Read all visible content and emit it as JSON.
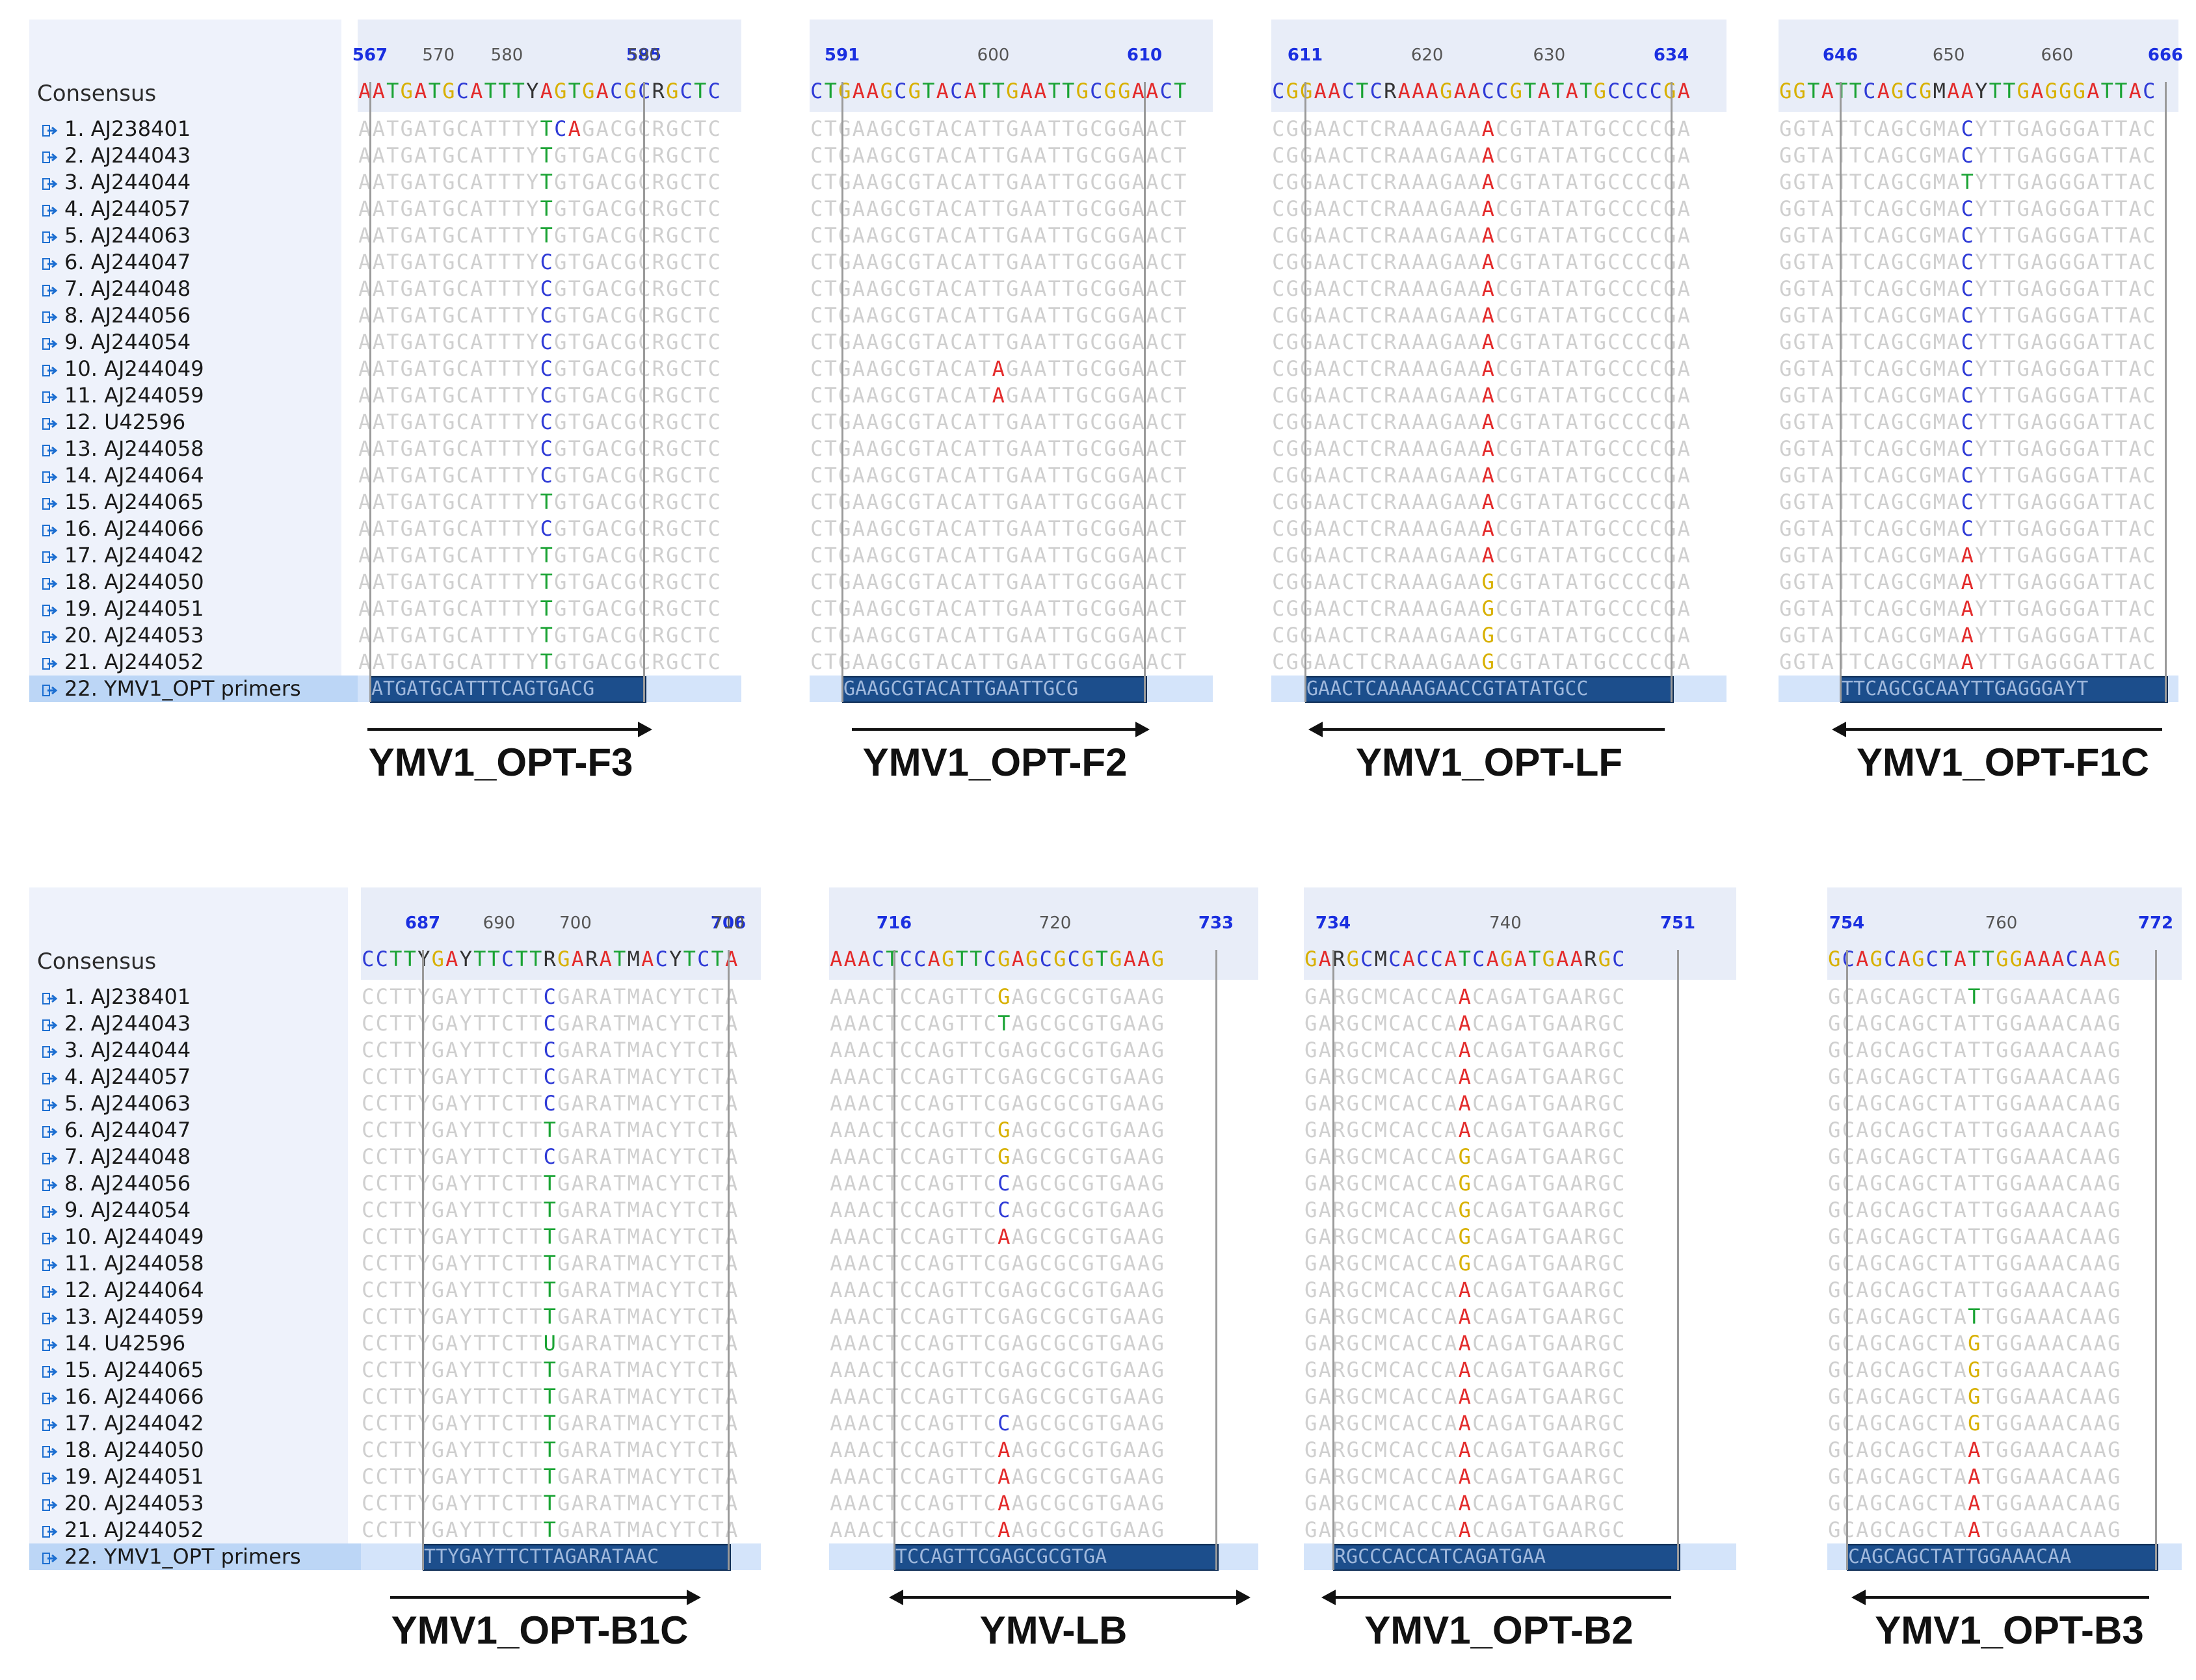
{
  "consensus_label": "Consensus",
  "top_sequences": [
    "1. AJ238401",
    "2. AJ244043",
    "3. AJ244044",
    "4. AJ244057",
    "5. AJ244063",
    "6. AJ244047",
    "7. AJ244048",
    "8. AJ244056",
    "9. AJ244054",
    "10. AJ244049",
    "11. AJ244059",
    "12. U42596",
    "13. AJ244058",
    "14. AJ244064",
    "15. AJ244065",
    "16. AJ244066",
    "17. AJ244042",
    "18. AJ244050",
    "19. AJ244051",
    "20. AJ244053",
    "21. AJ244052",
    "22. YMV1_OPT primers"
  ],
  "bottom_sequences": [
    "1. AJ238401",
    "2. AJ244043",
    "3. AJ244044",
    "4. AJ244057",
    "5. AJ244063",
    "6. AJ244047",
    "7. AJ244048",
    "8. AJ244056",
    "9. AJ244054",
    "10. AJ244049",
    "11. AJ244058",
    "12. AJ244064",
    "13. AJ244059",
    "14. U42596",
    "15. AJ244065",
    "16. AJ244066",
    "17. AJ244042",
    "18. AJ244050",
    "19. AJ244051",
    "20. AJ244053",
    "21. AJ244052",
    "22. YMV1_OPT primers"
  ],
  "colors": {
    "A": "#e32b2b",
    "C": "#2f3bd6",
    "G": "#d8b000",
    "T": "#1aa334",
    "primer_bar": "#1c4e8c",
    "ruler_bold": "#1a2fe0"
  },
  "icon": "sequence-arrow-icon",
  "panels": [
    {
      "primer": "YMV1_OPT-F3",
      "direction": "right",
      "ticks": [
        {
          "t": "567",
          "b": true
        },
        {
          "t": "570",
          "b": false
        },
        {
          "t": "580",
          "b": false
        },
        {
          "t": "585",
          "b": true
        },
        {
          "t": "590",
          "b": false
        }
      ],
      "consensus": "AATGATGCATTTYAGTGACGCRGCTC",
      "primer_seq": "ATGATGCATTTCAGTGACG",
      "variants": [
        "TCA",
        "T",
        "T",
        "T",
        "T",
        "C",
        "C",
        "C",
        "C",
        "C",
        "C",
        "C",
        "C",
        "C",
        "T",
        "C",
        "T",
        "T",
        "T",
        "T",
        "T"
      ]
    },
    {
      "primer": "YMV1_OPT-F2",
      "direction": "right",
      "ticks": [
        {
          "t": "591",
          "b": true
        },
        {
          "t": "600",
          "b": false
        },
        {
          "t": "610",
          "b": true
        }
      ],
      "consensus": "CTGAAGCGTACATTGAATTGCGGAACT",
      "primer_seq": "GAAGCGTACATTGAATTGCG",
      "variants": [
        "",
        "",
        "",
        "",
        "",
        "",
        "",
        "",
        "",
        "A",
        "A",
        "",
        "",
        "",
        "",
        "",
        "",
        "",
        "",
        "",
        ""
      ]
    },
    {
      "primer": "YMV1_OPT-LF",
      "direction": "left",
      "ticks": [
        {
          "t": "611",
          "b": true
        },
        {
          "t": "620",
          "b": false
        },
        {
          "t": "630",
          "b": false
        },
        {
          "t": "634",
          "b": true
        }
      ],
      "consensus": "CGGAACTCRAAAGAACCGTATATGCCCCGA",
      "primer_seq": "GAACTCAAAAGAACCGTATATGCC",
      "variants": [
        "A",
        "A",
        "A",
        "A",
        "A",
        "A",
        "A",
        "A",
        "A",
        "A",
        "A",
        "A",
        "A",
        "A",
        "A",
        "A",
        "A",
        "G",
        "G",
        "G",
        "G"
      ]
    },
    {
      "primer": "YMV1_OPT-F1C",
      "direction": "left",
      "ticks": [
        {
          "t": "646",
          "b": true
        },
        {
          "t": "650",
          "b": false
        },
        {
          "t": "660",
          "b": false
        },
        {
          "t": "666",
          "b": true
        }
      ],
      "consensus": "GGTATTCAGCGMAAYTTGAGGGATTAC",
      "primer_seq": "TTCAGCGCAAYTTGAGGGAYT",
      "variants": [
        "C",
        "C",
        "T",
        "C",
        "C",
        "C",
        "C",
        "C",
        "C",
        "C",
        "C",
        "C",
        "C",
        "C",
        "C",
        "C",
        "A",
        "A",
        "A",
        "A",
        "A"
      ]
    },
    {
      "primer": "YMV1_OPT-B1C",
      "direction": "right",
      "ticks": [
        {
          "t": "687",
          "b": true
        },
        {
          "t": "690",
          "b": false
        },
        {
          "t": "700",
          "b": false
        },
        {
          "t": "706",
          "b": true
        },
        {
          "t": "710",
          "b": false
        }
      ],
      "consensus": "CCTTYGAYTTCTTRGARATMACYTCTA",
      "primer_seq": "TTYGAYTTCTTAGARATAAC",
      "variants": [
        "C",
        "C",
        "C",
        "C",
        "C",
        "T",
        "C",
        "T",
        "T",
        "T",
        "T",
        "T",
        "T",
        "U",
        "T",
        "T",
        "T",
        "T",
        "T",
        "T",
        "T"
      ]
    },
    {
      "primer": "YMV-LB",
      "direction": "both",
      "ticks": [
        {
          "t": "716",
          "b": true
        },
        {
          "t": "720",
          "b": false
        },
        {
          "t": "733",
          "b": true
        }
      ],
      "consensus": "AAACTCCAGTTCGAGCGCGTGAAG",
      "primer_seq": "TCCAGTTCGAGCGCGTGA",
      "variants": [
        "G",
        "T",
        "",
        "",
        "",
        "G",
        "G",
        "C",
        "C",
        "A",
        "",
        "",
        "",
        "",
        "",
        "",
        "C",
        "A",
        "A",
        "A",
        "A"
      ]
    },
    {
      "primer": "YMV1_OPT-B2",
      "direction": "left",
      "ticks": [
        {
          "t": "734",
          "b": true
        },
        {
          "t": "740",
          "b": false
        },
        {
          "t": "751",
          "b": true
        }
      ],
      "consensus": "GARGCMCACCATCAGATGAARGC",
      "primer_seq": "RGCCCACCATCAGATGAA",
      "variants": [
        "A",
        "A",
        "A",
        "A",
        "A",
        "A",
        "G",
        "G",
        "G",
        "G",
        "G",
        "A",
        "A",
        "A",
        "A",
        "A",
        "A",
        "A",
        "A",
        "A",
        "A"
      ]
    },
    {
      "primer": "YMV1_OPT-B3",
      "direction": "left",
      "ticks": [
        {
          "t": "754",
          "b": true
        },
        {
          "t": "760",
          "b": false
        },
        {
          "t": "772",
          "b": true
        }
      ],
      "consensus": "GCAGCAGCTATTGGAAACAAG",
      "primer_seq": "CAGCAGCTATTGGAAACAA",
      "variants": [
        "T",
        "",
        "",
        "",
        "",
        "",
        "",
        "",
        "",
        "",
        "",
        "",
        "T",
        "G",
        "G",
        "G",
        "G",
        "A",
        "A",
        "A",
        "A"
      ]
    }
  ]
}
